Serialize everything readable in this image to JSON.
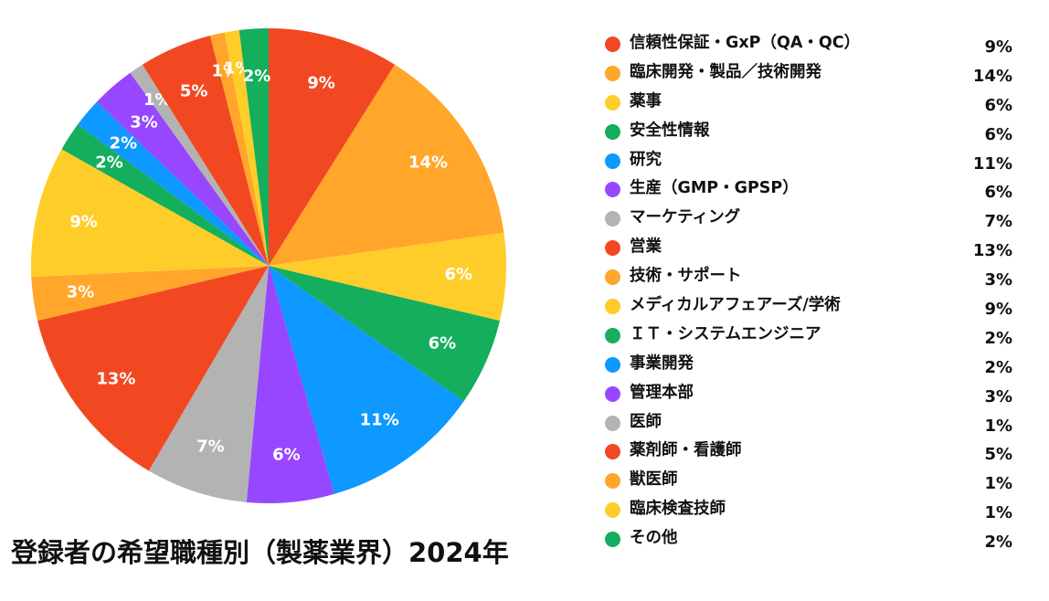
{
  "chart_data": {
    "type": "pie",
    "title": "登録者の希望職種別（製薬業界）2024年",
    "legend_position": "right",
    "labels": [
      "信頼性保証・GxP（QA・QC）",
      "臨床開発・製品／技術開発",
      "薬事",
      "安全性情報",
      "研究",
      "生産（GMP・GPSP）",
      "マーケティング",
      "営業",
      "技術・サポート",
      "メディカルアフェアーズ/学術",
      "ＩＴ・システムエンジニア",
      "事業開発",
      "管理本部",
      "医師",
      "薬剤師・看護師",
      "獣医師",
      "臨床検査技師",
      "その他"
    ],
    "values": [
      9,
      14,
      6,
      6,
      11,
      6,
      7,
      13,
      3,
      9,
      2,
      2,
      3,
      1,
      5,
      1,
      1,
      2
    ],
    "display_values": [
      "9%",
      "14%",
      "6%",
      "6%",
      "11%",
      "6%",
      "7%",
      "13%",
      "3%",
      "9%",
      "2%",
      "2%",
      "3%",
      "1%",
      "5%",
      "1%",
      "1%",
      "2%"
    ],
    "colors": [
      "#f24822",
      "#ffa62b",
      "#ffcd29",
      "#14ae5c",
      "#0d99ff",
      "#9747ff",
      "#b3b3b3",
      "#f24822",
      "#ffa62b",
      "#ffcd29",
      "#14ae5c",
      "#0d99ff",
      "#9747ff",
      "#b3b3b3",
      "#f24822",
      "#ffa62b",
      "#ffcd29",
      "#14ae5c"
    ]
  }
}
